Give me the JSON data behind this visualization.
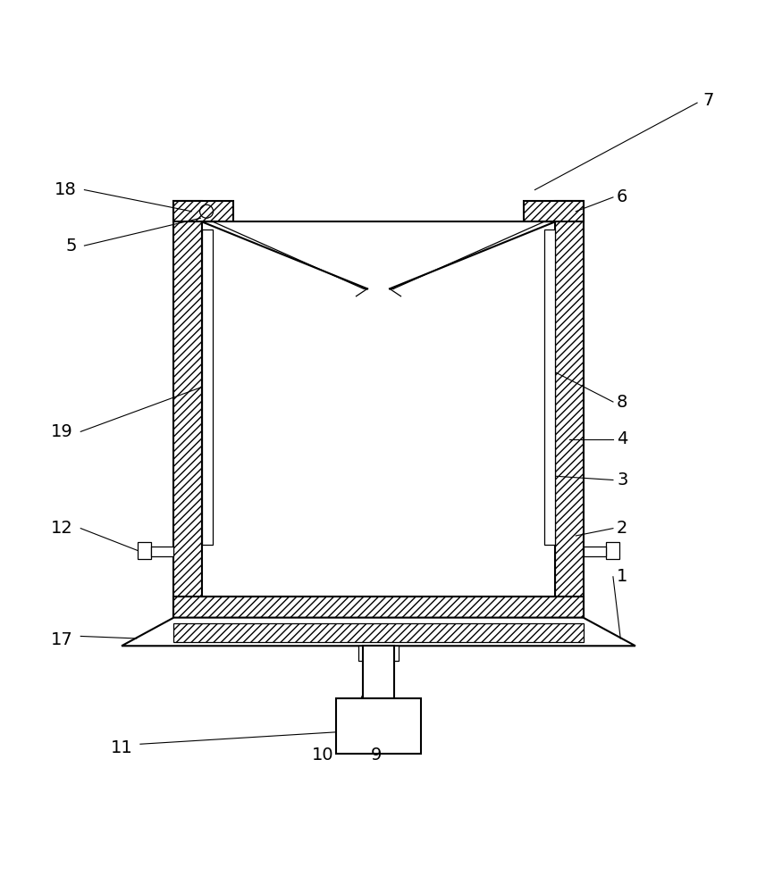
{
  "bg_color": "#ffffff",
  "fig_width": 8.47,
  "fig_height": 10.0,
  "OL": 0.225,
  "OR": 0.775,
  "OT": 0.83,
  "OB": 0.27,
  "WL": 0.038,
  "WT": 0.028,
  "lw_main": 1.5,
  "lw_thin": 0.9,
  "lw_label": 0.8,
  "fs": 14
}
